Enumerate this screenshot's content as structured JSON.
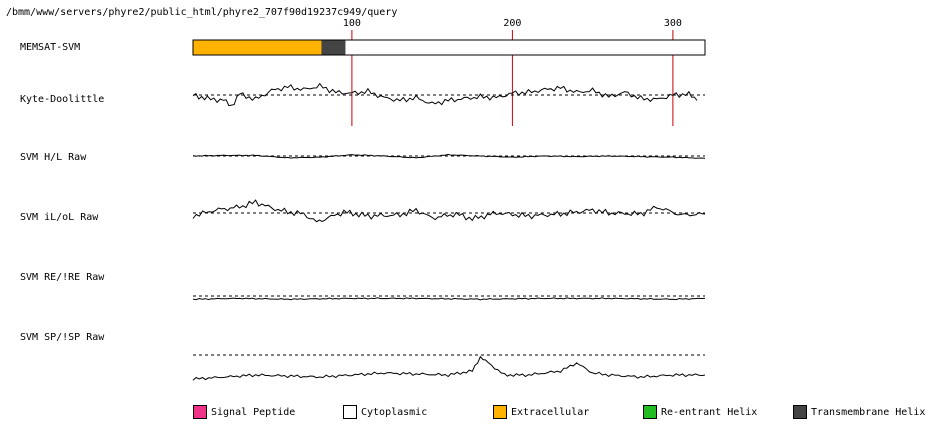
{
  "path_label": "/bmm/www/servers/phyre2/public_html/phyre2_707f90d19237c949/query",
  "chart_data": {
    "type": "line",
    "x_ticks": [
      100,
      200,
      300
    ],
    "x_range": [
      1,
      320
    ],
    "tracks": [
      {
        "label": "MEMSAT-SVM",
        "kind": "topology",
        "segments": [
          {
            "start": 1,
            "end": 80,
            "type": "Extracellular"
          },
          {
            "start": 81,
            "end": 95,
            "type": "Transmembrane Helix"
          },
          {
            "start": 96,
            "end": 320,
            "type": "Cytoplasmic"
          }
        ]
      },
      {
        "label": "Kyte-Doolittle",
        "kind": "profile",
        "x": [
          1,
          10,
          20,
          25,
          30,
          40,
          50,
          60,
          70,
          80,
          90,
          100,
          110,
          120,
          130,
          140,
          150,
          160,
          170,
          180,
          190,
          200,
          210,
          220,
          230,
          240,
          250,
          260,
          270,
          280,
          290,
          300,
          310,
          315
        ],
        "values": [
          0.0,
          -0.4,
          -0.6,
          -1.2,
          0.1,
          -0.5,
          0.5,
          0.9,
          0.6,
          1.0,
          0.3,
          0.2,
          0.4,
          -0.3,
          -0.6,
          -0.3,
          -1.0,
          -0.6,
          -0.4,
          -0.2,
          -0.3,
          0.2,
          0.3,
          0.6,
          0.8,
          0.3,
          0.5,
          -0.2,
          0.3,
          -0.4,
          -0.5,
          0.0,
          0.1,
          -0.6
        ]
      },
      {
        "label": "SVM H/L Raw",
        "kind": "profile",
        "x": [
          1,
          20,
          40,
          60,
          80,
          100,
          120,
          140,
          160,
          180,
          200,
          220,
          240,
          260,
          280,
          300,
          320
        ],
        "values": [
          0.0,
          0.1,
          0.1,
          -0.3,
          -0.2,
          0.2,
          0.0,
          -0.3,
          0.2,
          0.0,
          -0.2,
          0.0,
          -0.1,
          0.0,
          -0.1,
          -0.2,
          -0.4
        ]
      },
      {
        "label": "SVM iL/oL Raw",
        "kind": "profile",
        "x": [
          1,
          15,
          30,
          40,
          50,
          60,
          70,
          78,
          85,
          95,
          110,
          130,
          140,
          150,
          165,
          175,
          190,
          210,
          230,
          250,
          260,
          280,
          290,
          305,
          320
        ],
        "values": [
          -0.3,
          0.3,
          0.6,
          1.1,
          0.5,
          0.1,
          -0.1,
          -0.9,
          -0.5,
          0.1,
          -0.3,
          -0.2,
          0.3,
          -0.5,
          -0.1,
          -0.6,
          0.0,
          -0.3,
          -0.1,
          0.3,
          0.0,
          -0.1,
          0.6,
          -0.2,
          -0.1
        ]
      },
      {
        "label": "SVM RE/!RE Raw",
        "kind": "profile",
        "x": [
          1,
          30,
          60,
          100,
          140,
          180,
          220,
          260,
          300,
          320
        ],
        "values": [
          -0.4,
          -0.3,
          -0.4,
          -0.3,
          -0.3,
          -0.4,
          -0.3,
          -0.3,
          -0.4,
          -0.3
        ]
      },
      {
        "label": "SVM SP/!SP Raw",
        "kind": "profile",
        "x": [
          1,
          40,
          80,
          120,
          160,
          175,
          180,
          185,
          195,
          210,
          230,
          240,
          250,
          260,
          280,
          300,
          320
        ],
        "values": [
          -1.2,
          -1.0,
          -1.1,
          -0.9,
          -1.0,
          -0.8,
          -0.1,
          -0.4,
          -1.0,
          -1.0,
          -0.8,
          -0.4,
          -0.9,
          -1.0,
          -1.1,
          -1.0,
          -1.0
        ]
      }
    ],
    "legend": [
      {
        "label": "Signal Peptide",
        "color": "#ee3388"
      },
      {
        "label": "Cytoplasmic",
        "color": "#ffffff"
      },
      {
        "label": "Extracellular",
        "color": "#ffb300"
      },
      {
        "label": "Re-entrant Helix",
        "color": "#22bb22"
      },
      {
        "label": "Transmembrane Helix",
        "color": "#444444"
      }
    ],
    "colors": {
      "Extracellular": "#ffb300",
      "Transmembrane Helix": "#444444",
      "Cytoplasmic": "#ffffff",
      "tick_line": "#cc0000"
    },
    "legend_placement": "bottom"
  }
}
